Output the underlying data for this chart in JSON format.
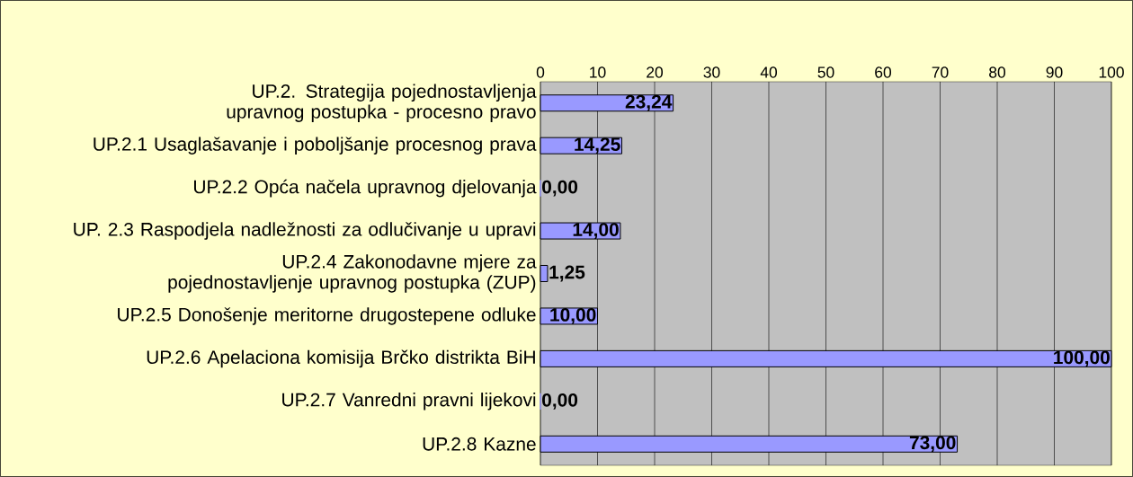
{
  "chart_data": {
    "type": "bar",
    "orientation": "horizontal",
    "categories": [
      "UP.2. Strategija pojednostavljenja upravnog postupka - procesno pravo",
      "UP.2.1 Usaglašavanje i poboljšanje procesnog prava",
      "UP.2.2 Opća načela upravnog djelovanja",
      "UP. 2.3 Raspodjela nadležnosti za odlučivanje u upravi",
      "UP.2.4 Zakonodavne mjere za pojednostavljenje upravnog postupka (ZUP)",
      "UP.2.5 Donošenje meritorne drugostepene odluke",
      "UP.2.6 Apelaciona komisija Brčko distrikta BiH",
      "UP.2.7 Vanredni pravni lijekovi",
      "UP.2.8 Kazne"
    ],
    "values": [
      23.24,
      14.25,
      0,
      14,
      1.25,
      10,
      100,
      0,
      73
    ],
    "value_labels": [
      "23,24",
      "14,25",
      "0,00",
      "14,00",
      "1,25",
      "10,00",
      "100,00",
      "0,00",
      "73,00"
    ],
    "color": "#9999ff",
    "xlim": [
      0,
      100
    ],
    "xticks": [
      0,
      10,
      20,
      30,
      40,
      50,
      60,
      70,
      80,
      90,
      100
    ],
    "grid": "x"
  }
}
